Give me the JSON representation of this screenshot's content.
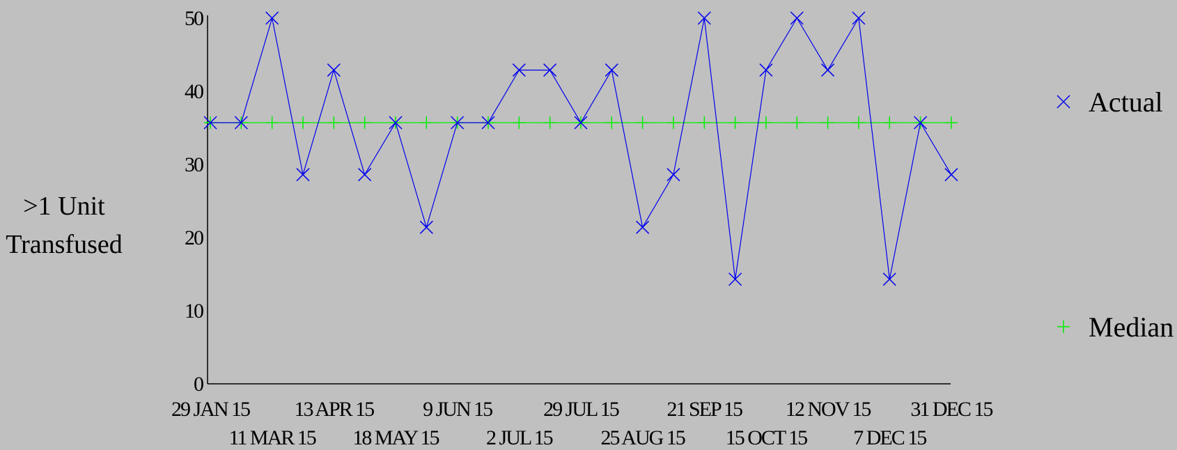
{
  "chart_data": {
    "type": "line",
    "ylabel_lines": [
      ">1 Unit",
      "Transfused"
    ],
    "ylim": [
      0,
      50
    ],
    "yticks": [
      0,
      10,
      20,
      30,
      40,
      50
    ],
    "grid": false,
    "legend_position": "right",
    "x": [
      "29 JAN 15",
      "",
      "11 MAR 15",
      "",
      "13 APR 15",
      "",
      "18 MAY 15",
      "",
      "9 JUN 15",
      "",
      "2 JUL 15",
      "",
      "29 JUL 15",
      "",
      "25 AUG 15",
      "",
      "21 SEP 15",
      "",
      "15 OCT 15",
      "",
      "12 NOV 15",
      "",
      "7 DEC 15",
      "",
      "31 DEC 15"
    ],
    "series": [
      {
        "name": "Actual",
        "marker": "x",
        "color": "#0000ee",
        "values": [
          35.7,
          35.7,
          50,
          28.6,
          42.9,
          28.6,
          35.7,
          21.4,
          35.7,
          35.7,
          42.9,
          42.9,
          35.7,
          42.9,
          21.4,
          28.6,
          50,
          14.3,
          42.9,
          50,
          42.9,
          50,
          14.3,
          35.7,
          28.6
        ]
      },
      {
        "name": "Median",
        "marker": "+",
        "color": "#00ee00",
        "values": [
          35.7,
          35.7,
          35.7,
          35.7,
          35.7,
          35.7,
          35.7,
          35.7,
          35.7,
          35.7,
          35.7,
          35.7,
          35.7,
          35.7,
          35.7,
          35.7,
          35.7,
          35.7,
          35.7,
          35.7,
          35.7,
          35.7,
          35.7,
          35.7,
          35.7
        ]
      }
    ]
  }
}
